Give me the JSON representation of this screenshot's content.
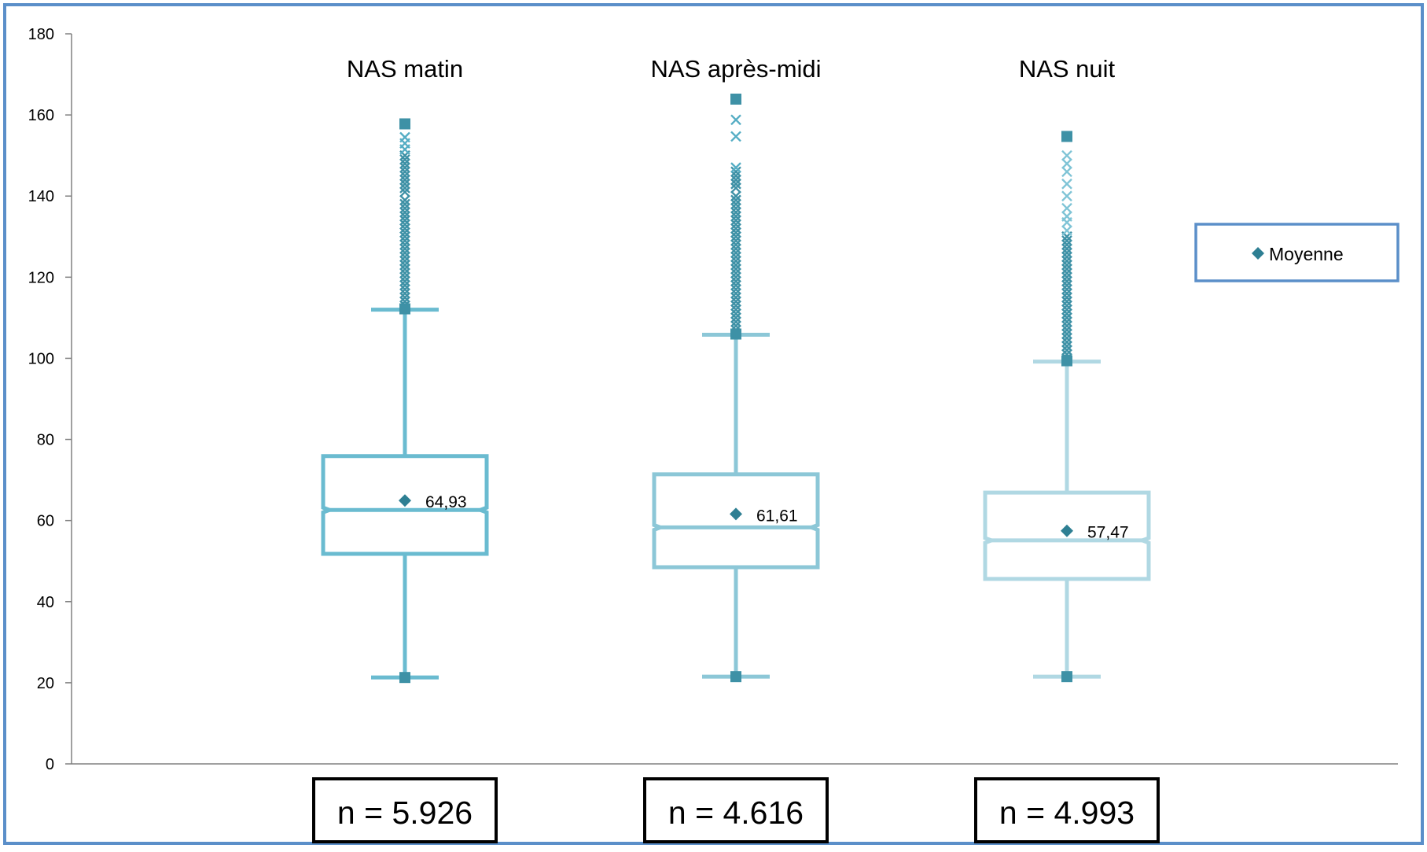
{
  "chart_data": {
    "type": "boxplot",
    "ylim": [
      0,
      180
    ],
    "y_ticks": [
      0,
      20,
      40,
      60,
      80,
      100,
      120,
      140,
      160,
      180
    ],
    "grid": false,
    "legend": {
      "position": "right",
      "entries": [
        "Moyenne"
      ]
    },
    "categories": [
      "NAS matin",
      "NAS après-midi",
      "NAS nuit"
    ],
    "series": [
      {
        "name": "NAS matin",
        "color": "#6ABBD0",
        "whisker_low": 21.3,
        "q1": 51.8,
        "median": 62.6,
        "q3": 75.9,
        "whisker_high": 112,
        "mean": 64.93,
        "mean_label": "64,93",
        "min": 21.3,
        "max": 157.8,
        "outliers": [
          113,
          114,
          115,
          116,
          117,
          118,
          119,
          120,
          121,
          122,
          123,
          124,
          125,
          126,
          127,
          128,
          129,
          130,
          131,
          132,
          133,
          134,
          135,
          136,
          137,
          138,
          139,
          141,
          142,
          143,
          144,
          145,
          146,
          147,
          148,
          149,
          150
        ],
        "extreme_outliers": [
          151.5,
          153,
          154.5
        ],
        "n_label": "n = 5.926"
      },
      {
        "name": "NAS après-midi",
        "color": "#8CC7D7",
        "whisker_low": 21.5,
        "q1": 48.5,
        "median": 58.3,
        "q3": 71.4,
        "whisker_high": 105.8,
        "mean": 61.61,
        "mean_label": "61,61",
        "min": 21.5,
        "max": 163.9,
        "outliers": [
          107,
          108,
          109,
          110,
          111,
          112,
          113,
          114,
          115,
          116,
          117,
          118,
          119,
          120,
          121,
          122,
          123,
          124,
          125,
          126,
          127,
          128,
          129,
          130,
          131,
          132,
          133,
          134,
          135,
          136,
          137,
          138,
          139,
          140,
          142,
          143,
          144,
          145,
          146
        ],
        "extreme_outliers": [
          147,
          154.7,
          158.8
        ],
        "n_label": "n = 4.616"
      },
      {
        "name": "NAS nuit",
        "color": "#B0D8E3",
        "whisker_low": 21.5,
        "q1": 45.6,
        "median": 55.1,
        "q3": 66.9,
        "whisker_high": 99.2,
        "mean": 57.47,
        "mean_label": "57,47",
        "min": 21.5,
        "max": 154.7,
        "outliers": [
          100,
          101,
          102,
          103,
          104,
          105,
          106,
          107,
          108,
          109,
          110,
          111,
          112,
          113,
          114,
          115,
          116,
          117,
          118,
          119,
          120,
          121,
          122,
          123,
          124,
          125,
          126,
          127,
          128,
          129,
          130
        ],
        "extreme_outliers": [
          131.5,
          133.5,
          135,
          137,
          140,
          143,
          146,
          148,
          150
        ],
        "n_label": "n = 4.993"
      }
    ]
  },
  "colors": {
    "frame": "#5B8FC9",
    "marker": "#3E91A6",
    "mean_marker": "#2E7F93",
    "axis": "#808080",
    "text": "#000000"
  }
}
